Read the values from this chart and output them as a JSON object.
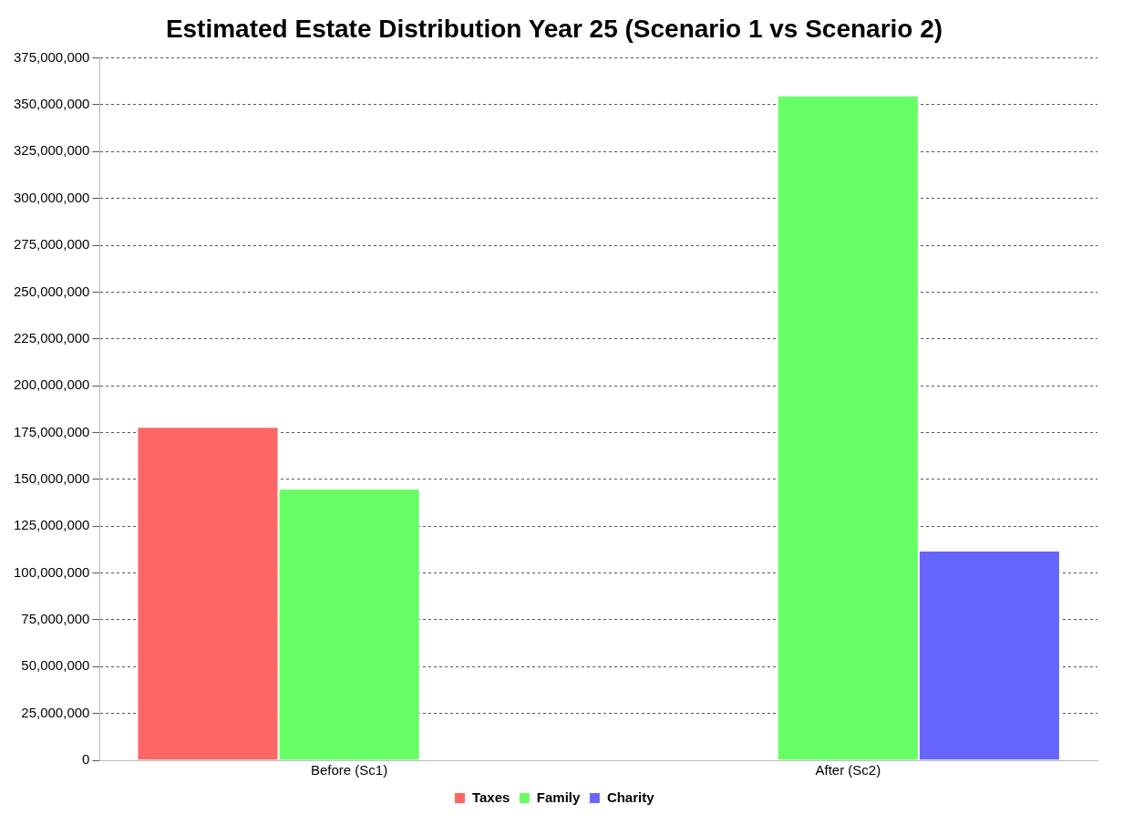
{
  "chart_data": {
    "type": "bar",
    "title": "Estimated Estate Distribution Year 25 (Scenario 1 vs Scenario 2)",
    "categories": [
      "Before (Sc1)",
      "After (Sc2)"
    ],
    "series": [
      {
        "name": "Taxes",
        "color": "#ff6666",
        "values": [
          178000000,
          0
        ]
      },
      {
        "name": "Family",
        "color": "#66ff66",
        "values": [
          145000000,
          355000000
        ]
      },
      {
        "name": "Charity",
        "color": "#6666ff",
        "values": [
          0,
          112000000
        ]
      }
    ],
    "ylim": [
      0,
      375000000
    ],
    "yticks": [
      {
        "value": 0,
        "label": "0"
      },
      {
        "value": 25000000,
        "label": "25,000,000"
      },
      {
        "value": 50000000,
        "label": "50,000,000"
      },
      {
        "value": 75000000,
        "label": "75,000,000"
      },
      {
        "value": 100000000,
        "label": "100,000,000"
      },
      {
        "value": 125000000,
        "label": "125,000,000"
      },
      {
        "value": 150000000,
        "label": "150,000,000"
      },
      {
        "value": 175000000,
        "label": "175,000,000"
      },
      {
        "value": 200000000,
        "label": "200,000,000"
      },
      {
        "value": 225000000,
        "label": "225,000,000"
      },
      {
        "value": 250000000,
        "label": "250,000,000"
      },
      {
        "value": 275000000,
        "label": "275,000,000"
      },
      {
        "value": 300000000,
        "label": "300,000,000"
      },
      {
        "value": 325000000,
        "label": "325,000,000"
      },
      {
        "value": 350000000,
        "label": "350,000,000"
      },
      {
        "value": 375000000,
        "label": "375,000,000"
      }
    ],
    "grid": "y",
    "line_style": "dashed",
    "legend": "bottom"
  }
}
